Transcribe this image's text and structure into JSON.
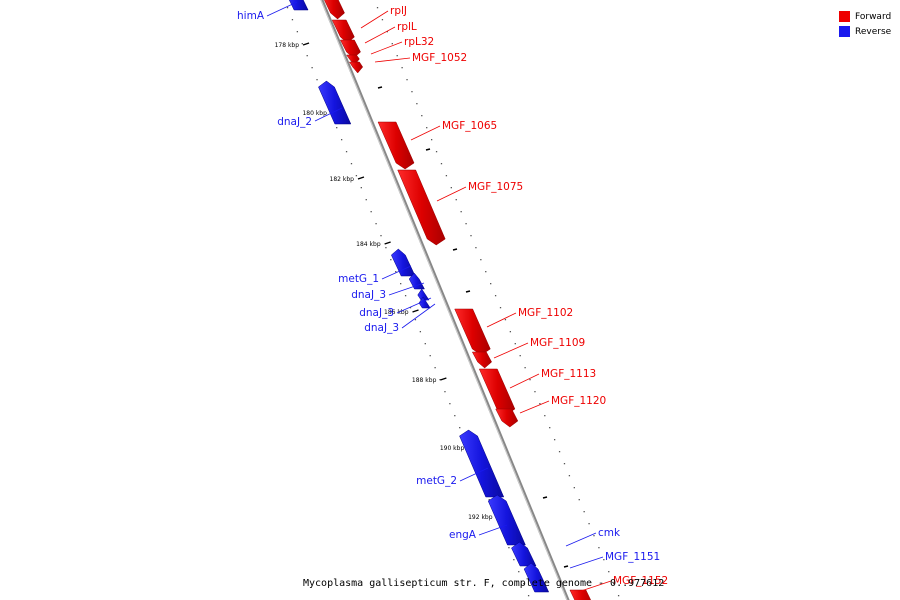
{
  "colors": {
    "forward": "#ee0000",
    "reverse": "#1a1aee",
    "backbone": "#999999"
  },
  "legend": {
    "forward_label": "Forward",
    "reverse_label": "Reverse"
  },
  "caption": "Mycoplasma gallisepticum str. F, complete genome - 0..977612",
  "ticks": [
    "178 kbp",
    "180 kbp",
    "182 kbp",
    "184 kbp",
    "186 kbp",
    "188 kbp",
    "190 kbp",
    "192 kbp"
  ],
  "genes": [
    {
      "name": "himA",
      "strand": "reverse"
    },
    {
      "name": "rplJ",
      "strand": "forward"
    },
    {
      "name": "rplL",
      "strand": "forward"
    },
    {
      "name": "rpL32",
      "strand": "forward"
    },
    {
      "name": "MGF_1052",
      "strand": "forward"
    },
    {
      "name": "dnaJ_2",
      "strand": "reverse"
    },
    {
      "name": "MGF_1065",
      "strand": "forward"
    },
    {
      "name": "MGF_1075",
      "strand": "forward"
    },
    {
      "name": "metG_1",
      "strand": "reverse"
    },
    {
      "name": "dnaJ_3",
      "strand": "reverse"
    },
    {
      "name": "dnaJ_3",
      "strand": "reverse"
    },
    {
      "name": "dnaJ_3",
      "strand": "reverse"
    },
    {
      "name": "MGF_1102",
      "strand": "forward"
    },
    {
      "name": "MGF_1109",
      "strand": "forward"
    },
    {
      "name": "MGF_1113",
      "strand": "forward"
    },
    {
      "name": "MGF_1120",
      "strand": "forward"
    },
    {
      "name": "metG_2",
      "strand": "reverse"
    },
    {
      "name": "engA",
      "strand": "reverse"
    },
    {
      "name": "cmk",
      "strand": "reverse"
    },
    {
      "name": "MGF_1151",
      "strand": "reverse"
    },
    {
      "name": "MGF_1152",
      "strand": "forward"
    }
  ]
}
